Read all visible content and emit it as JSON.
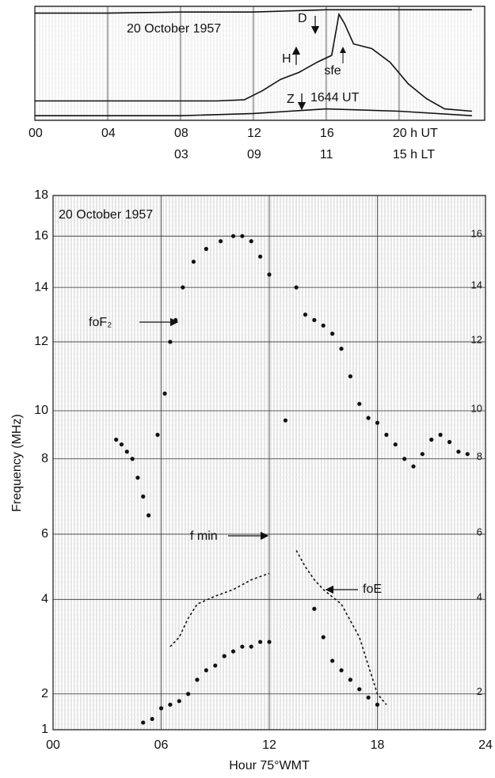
{
  "chart_data": [
    {
      "type": "line",
      "annotations": {
        "date": "20 October 1957",
        "sfe": "sfe",
        "time": "1644 UT"
      },
      "xlim": [
        0,
        24.7
      ],
      "ylim": [
        0,
        100
      ],
      "xticks": [
        {
          "value": 0,
          "label": "00"
        },
        {
          "value": 4,
          "label": "04"
        },
        {
          "value": 8,
          "label": "08"
        },
        12,
        16,
        {
          "value": 20,
          "label": "20 h UT"
        }
      ],
      "lt_labels": [
        "03",
        "09",
        "11",
        "15 h LT"
      ],
      "series": [
        {
          "name": "H",
          "color": "#111111",
          "x": [
            0,
            2,
            4,
            6,
            8,
            10,
            11.5,
            12.5,
            13.5,
            14.5,
            15.5,
            16.3,
            16.7,
            17,
            17.5,
            18.5,
            19.5,
            20.5,
            21.5,
            22.5,
            24
          ],
          "values": [
            17,
            17,
            17,
            17,
            17,
            17,
            18,
            26,
            36,
            42,
            51,
            57,
            93,
            85,
            67,
            63,
            51,
            32,
            19,
            10,
            8
          ]
        },
        {
          "name": "D",
          "color": "#111111",
          "x": [
            0,
            4,
            8,
            12,
            16,
            20,
            24
          ],
          "values": [
            94,
            94,
            95,
            95,
            97,
            97,
            97
          ]
        },
        {
          "name": "Z",
          "color": "#111111",
          "x": [
            0,
            4,
            8,
            12,
            14,
            16,
            20,
            24
          ],
          "values": [
            4,
            4,
            4,
            6,
            8,
            10,
            8,
            4
          ]
        }
      ]
    },
    {
      "type": "line",
      "annotations": {
        "date": "20 October 1957"
      },
      "x_label": "Hour 75°WMT",
      "y_label": "Frequency (MHz)",
      "xlim": [
        0,
        24
      ],
      "ylim": [
        1,
        18
      ],
      "xticks": [
        {
          "value": 0,
          "label": "00"
        },
        {
          "value": 6,
          "label": "06"
        },
        12,
        18,
        24
      ],
      "yticks": [
        1,
        2,
        4,
        6,
        8,
        10,
        12,
        14,
        16,
        18
      ],
      "grid": true,
      "series": [
        {
          "name": "foF₂",
          "style": "dots",
          "color": "#111111",
          "x": [
            3.5,
            3.8,
            4.1,
            4.4,
            4.7,
            5.0,
            5.3,
            5.8,
            6.2,
            6.5,
            6.8,
            7.2,
            7.8,
            8.5,
            9.3,
            10.0,
            10.5,
            11.0,
            11.5,
            12.0,
            12.9,
            13.5,
            14.0,
            14.5,
            15.0,
            15.5,
            16.0,
            16.5,
            17.0,
            17.5,
            18.0,
            18.5,
            19.0,
            19.5,
            20.0,
            20.5,
            21.0,
            21.5,
            22.0,
            22.5,
            23.0
          ],
          "values": [
            8.8,
            8.6,
            8.3,
            8.0,
            7.5,
            7.0,
            6.5,
            9.0,
            10.5,
            12.0,
            12.8,
            14.0,
            15.0,
            15.5,
            15.8,
            16.0,
            16.0,
            15.8,
            15.2,
            14.5,
            9.6,
            14.0,
            13.0,
            12.8,
            12.6,
            12.3,
            11.8,
            11.0,
            10.2,
            9.7,
            9.5,
            9.0,
            8.6,
            8.0,
            7.8,
            8.2,
            8.8,
            9.0,
            8.7,
            8.3,
            8.2
          ]
        },
        {
          "name": "foE",
          "style": "line",
          "color": "#111111",
          "x": [
            6.5,
            7,
            7.5,
            8,
            9,
            10,
            11,
            12,
            13,
            13.5,
            14,
            14.5,
            15,
            16,
            17,
            17.5,
            18,
            18.5
          ],
          "values": [
            3.0,
            3.2,
            3.6,
            3.9,
            4.1,
            4.3,
            4.6,
            4.8,
            null,
            5.5,
            5.0,
            4.6,
            4.3,
            3.9,
            3.2,
            2.6,
            2.0,
            1.7
          ]
        },
        {
          "name": "f min",
          "style": "dots",
          "color": "#111111",
          "x": [
            5,
            5.5,
            6,
            6.5,
            7,
            7.5,
            8,
            8.5,
            9,
            9.5,
            10,
            10.5,
            11,
            11.5,
            12,
            14.5,
            15,
            15.5,
            16,
            16.5,
            17,
            17.5,
            18
          ],
          "values": [
            1.2,
            1.3,
            1.6,
            1.7,
            1.8,
            2.0,
            2.3,
            2.5,
            2.6,
            2.8,
            2.9,
            3.0,
            3.0,
            3.1,
            3.1,
            3.8,
            3.2,
            2.7,
            2.5,
            2.3,
            2.1,
            1.9,
            1.7
          ]
        }
      ]
    }
  ]
}
